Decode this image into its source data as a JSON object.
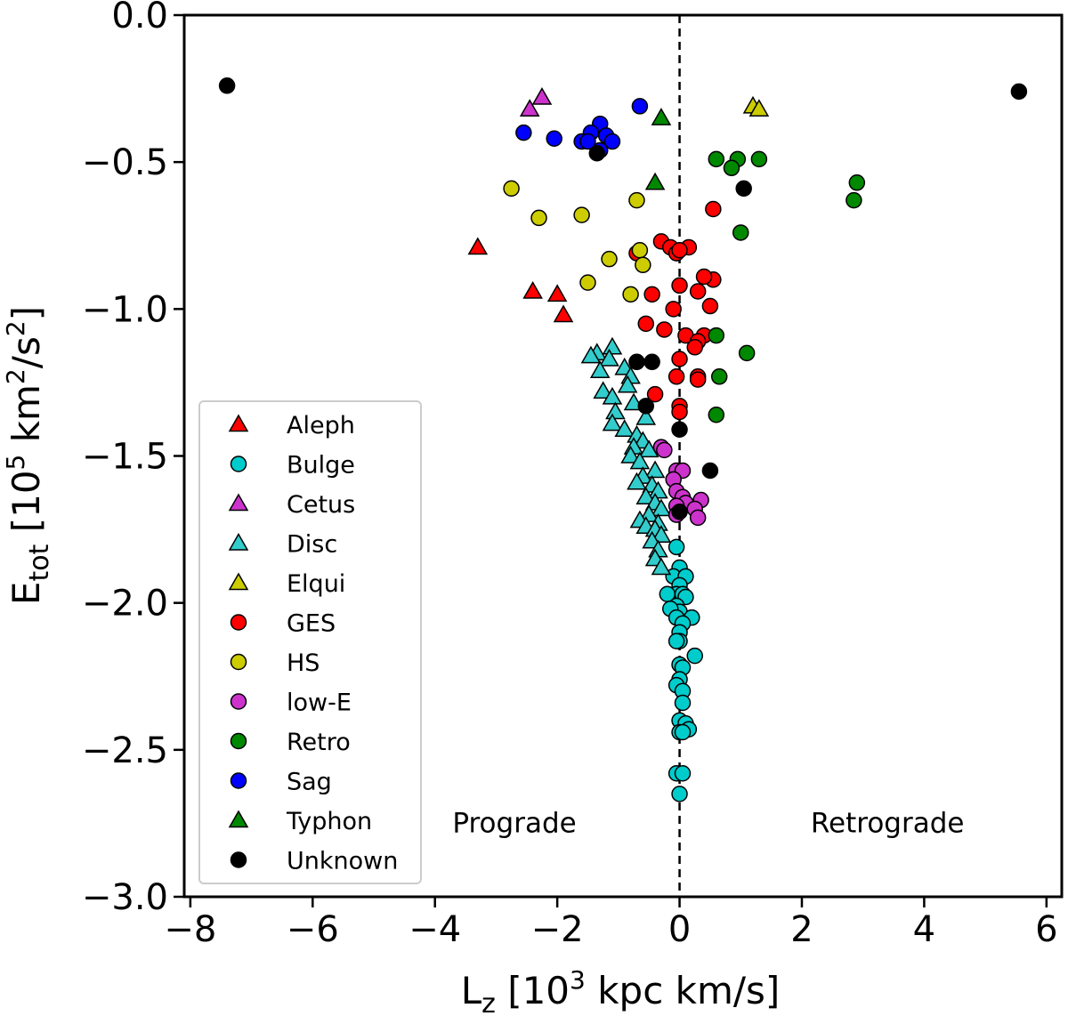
{
  "chart_data": {
    "type": "scatter",
    "title": "",
    "xlabel_main": "L",
    "xlabel_sub": "z",
    "xlabel_rest": " [10",
    "xlabel_sup": "3",
    "xlabel_end": " kpc km/s]",
    "ylabel_main": "E",
    "ylabel_sub": "tot",
    "ylabel_rest": " [10",
    "ylabel_sup": "5",
    "ylabel_mid": " km",
    "ylabel_sup2": "2",
    "ylabel_mid2": "/s",
    "ylabel_sup3": "2",
    "ylabel_end": "]",
    "xlim": [
      -8.1,
      6.25
    ],
    "ylim": [
      -3.0,
      0.0
    ],
    "xticks": [
      -8,
      -6,
      -4,
      -2,
      0,
      2,
      4,
      6
    ],
    "xtick_labels": [
      "−8",
      "−6",
      "−4",
      "−2",
      "0",
      "2",
      "4",
      "6"
    ],
    "yticks": [
      0.0,
      -0.5,
      -1.0,
      -1.5,
      -2.0,
      -2.5,
      -3.0
    ],
    "ytick_labels": [
      "0.0",
      "−0.5",
      "−1.0",
      "−1.5",
      "−2.0",
      "−2.5",
      "−3.0"
    ],
    "vline_x": 0,
    "annotations": [
      {
        "text": "Prograde",
        "x": -2.7,
        "y": -2.75
      },
      {
        "text": "Retrograde",
        "x": 3.4,
        "y": -2.75
      }
    ],
    "legend_position": "lower-left",
    "series": [
      {
        "name": "Aleph",
        "marker": "triangle",
        "color": "#ff0000",
        "points": [
          [
            -3.3,
            -0.79
          ],
          [
            -2.4,
            -0.94
          ],
          [
            -2.0,
            -0.95
          ],
          [
            -1.9,
            -1.02
          ]
        ]
      },
      {
        "name": "Bulge",
        "marker": "circle",
        "color": "#00cccc",
        "points": [
          [
            -0.05,
            -1.81
          ],
          [
            0.0,
            -1.88
          ],
          [
            -0.1,
            -1.91
          ],
          [
            0.1,
            -1.91
          ],
          [
            0.0,
            -1.94
          ],
          [
            -0.05,
            -1.97
          ],
          [
            0.05,
            -1.97
          ],
          [
            -0.2,
            -1.97
          ],
          [
            0.1,
            -1.98
          ],
          [
            -0.05,
            -2.01
          ],
          [
            0.0,
            -2.03
          ],
          [
            -0.15,
            -2.02
          ],
          [
            -0.05,
            -2.05
          ],
          [
            0.2,
            -2.05
          ],
          [
            0.05,
            -2.07
          ],
          [
            0.0,
            -2.1
          ],
          [
            0.0,
            -2.13
          ],
          [
            -0.05,
            -2.13
          ],
          [
            0.25,
            -2.18
          ],
          [
            0.0,
            -2.21
          ],
          [
            0.05,
            -2.22
          ],
          [
            0.0,
            -2.26
          ],
          [
            -0.05,
            -2.28
          ],
          [
            0.05,
            -2.3
          ],
          [
            0.05,
            -2.34
          ],
          [
            0.0,
            -2.4
          ],
          [
            0.1,
            -2.41
          ],
          [
            0.15,
            -2.43
          ],
          [
            0.0,
            -2.44
          ],
          [
            0.05,
            -2.44
          ],
          [
            -0.05,
            -2.58
          ],
          [
            0.05,
            -2.58
          ],
          [
            0.0,
            -2.65
          ]
        ]
      },
      {
        "name": "Cetus",
        "marker": "triangle",
        "color": "#cc33cc",
        "points": [
          [
            -2.45,
            -0.32
          ],
          [
            -2.25,
            -0.28
          ]
        ]
      },
      {
        "name": "Disc",
        "marker": "triangle",
        "color": "#33cccc",
        "points": [
          [
            -1.1,
            -1.13
          ],
          [
            -1.35,
            -1.15
          ],
          [
            -1.45,
            -1.16
          ],
          [
            -1.15,
            -1.17
          ],
          [
            -0.9,
            -1.2
          ],
          [
            -1.3,
            -1.21
          ],
          [
            -0.8,
            -1.23
          ],
          [
            -0.85,
            -1.26
          ],
          [
            -1.25,
            -1.28
          ],
          [
            -1.1,
            -1.3
          ],
          [
            -0.75,
            -1.32
          ],
          [
            -1.05,
            -1.35
          ],
          [
            -0.55,
            -1.37
          ],
          [
            -1.1,
            -1.39
          ],
          [
            -0.9,
            -1.41
          ],
          [
            -0.7,
            -1.43
          ],
          [
            -0.6,
            -1.45
          ],
          [
            -0.75,
            -1.47
          ],
          [
            -0.5,
            -1.48
          ],
          [
            -0.8,
            -1.5
          ],
          [
            -0.65,
            -1.52
          ],
          [
            -0.4,
            -1.55
          ],
          [
            -0.6,
            -1.57
          ],
          [
            -0.7,
            -1.59
          ],
          [
            -0.45,
            -1.6
          ],
          [
            -0.35,
            -1.62
          ],
          [
            -0.55,
            -1.64
          ],
          [
            -0.4,
            -1.66
          ],
          [
            -0.3,
            -1.68
          ],
          [
            -0.5,
            -1.7
          ],
          [
            -0.65,
            -1.72
          ],
          [
            -0.35,
            -1.73
          ],
          [
            -0.55,
            -1.74
          ],
          [
            -0.4,
            -1.75
          ],
          [
            -0.3,
            -1.77
          ],
          [
            -0.45,
            -1.79
          ],
          [
            -0.35,
            -1.82
          ],
          [
            -0.4,
            -1.85
          ],
          [
            -0.3,
            -1.88
          ]
        ]
      },
      {
        "name": "Elqui",
        "marker": "triangle",
        "color": "#cccc00",
        "points": [
          [
            1.2,
            -0.31
          ],
          [
            1.3,
            -0.32
          ]
        ]
      },
      {
        "name": "GES",
        "marker": "circle",
        "color": "#ff0000",
        "points": [
          [
            -0.3,
            -0.77
          ],
          [
            -0.15,
            -0.79
          ],
          [
            0.15,
            -0.79
          ],
          [
            -0.05,
            -0.81
          ],
          [
            0.0,
            -0.8
          ],
          [
            -0.7,
            -0.81
          ],
          [
            0.55,
            -0.66
          ],
          [
            0.55,
            -0.9
          ],
          [
            0.4,
            -0.89
          ],
          [
            0.0,
            -0.92
          ],
          [
            0.3,
            -0.94
          ],
          [
            -0.45,
            -0.95
          ],
          [
            -0.1,
            -1.0
          ],
          [
            0.5,
            -0.99
          ],
          [
            -0.55,
            -1.05
          ],
          [
            -0.25,
            -1.07
          ],
          [
            0.1,
            -1.09
          ],
          [
            0.4,
            -1.09
          ],
          [
            0.3,
            -1.11
          ],
          [
            0.25,
            -1.13
          ],
          [
            0.0,
            -1.17
          ],
          [
            0.3,
            -1.23
          ],
          [
            0.3,
            -1.24
          ],
          [
            -0.05,
            -1.23
          ],
          [
            -0.4,
            -1.29
          ],
          [
            0.0,
            -1.33
          ],
          [
            0.0,
            -1.35
          ]
        ]
      },
      {
        "name": "HS",
        "marker": "circle",
        "color": "#cccc00",
        "points": [
          [
            -2.75,
            -0.59
          ],
          [
            -2.3,
            -0.69
          ],
          [
            -1.6,
            -0.68
          ],
          [
            -0.7,
            -0.63
          ],
          [
            -0.65,
            -0.8
          ],
          [
            -1.15,
            -0.83
          ],
          [
            -0.6,
            -0.85
          ],
          [
            -1.5,
            -0.91
          ],
          [
            -0.8,
            -0.95
          ]
        ]
      },
      {
        "name": "low-E",
        "marker": "circle",
        "color": "#cc33cc",
        "points": [
          [
            -0.3,
            -1.47
          ],
          [
            -0.25,
            -1.48
          ],
          [
            -0.05,
            -1.55
          ],
          [
            0.05,
            -1.55
          ],
          [
            -0.1,
            -1.58
          ],
          [
            -0.05,
            -1.62
          ],
          [
            0.05,
            -1.64
          ],
          [
            0.1,
            -1.66
          ],
          [
            -0.05,
            -1.67
          ],
          [
            0.35,
            -1.65
          ],
          [
            0.25,
            -1.68
          ],
          [
            -0.05,
            -1.7
          ],
          [
            0.3,
            -1.71
          ]
        ]
      },
      {
        "name": "Retro",
        "marker": "circle",
        "color": "#008800",
        "points": [
          [
            0.6,
            -0.49
          ],
          [
            0.95,
            -0.49
          ],
          [
            1.3,
            -0.49
          ],
          [
            0.85,
            -0.52
          ],
          [
            2.9,
            -0.57
          ],
          [
            2.85,
            -0.63
          ],
          [
            1.0,
            -0.74
          ],
          [
            0.6,
            -1.09
          ],
          [
            1.1,
            -1.15
          ],
          [
            0.65,
            -1.23
          ],
          [
            0.6,
            -1.36
          ]
        ]
      },
      {
        "name": "Sag",
        "marker": "circle",
        "color": "#0000ff",
        "points": [
          [
            -0.65,
            -0.31
          ],
          [
            -1.3,
            -0.37
          ],
          [
            -2.55,
            -0.4
          ],
          [
            -1.45,
            -0.4
          ],
          [
            -1.2,
            -0.41
          ],
          [
            -2.05,
            -0.42
          ],
          [
            -1.6,
            -0.43
          ],
          [
            -1.1,
            -0.43
          ],
          [
            -1.5,
            -0.43
          ],
          [
            -1.3,
            -0.46
          ]
        ]
      },
      {
        "name": "Typhon",
        "marker": "triangle",
        "color": "#008800",
        "points": [
          [
            -0.3,
            -0.35
          ],
          [
            -0.4,
            -0.57
          ]
        ]
      },
      {
        "name": "Unknown",
        "marker": "circle",
        "color": "#000000",
        "points": [
          [
            -7.4,
            -0.24
          ],
          [
            5.55,
            -0.26
          ],
          [
            -1.35,
            -0.47
          ],
          [
            1.05,
            -0.59
          ],
          [
            -0.7,
            -1.18
          ],
          [
            -0.45,
            -1.18
          ],
          [
            -0.55,
            -1.33
          ],
          [
            0.0,
            -1.41
          ],
          [
            0.5,
            -1.55
          ],
          [
            0.0,
            -1.69
          ]
        ]
      }
    ]
  }
}
